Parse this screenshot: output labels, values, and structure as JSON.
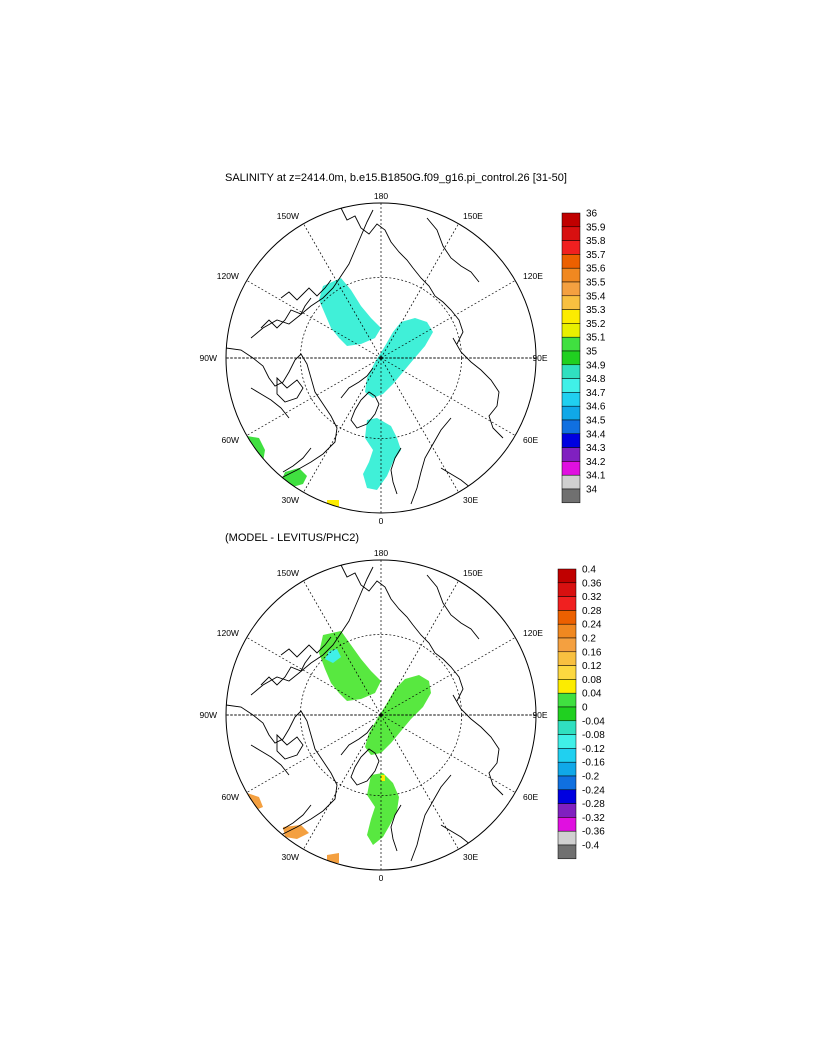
{
  "panel1": {
    "title": "SALINITY at z=2414.0m, b.e15.B1850G.f09_g16.pi_control.26 [31-50]",
    "lon_labels": [
      "180",
      "150E",
      "120E",
      "90E",
      "60E",
      "30E",
      "0",
      "30W",
      "60W",
      "90W",
      "120W",
      "150W"
    ],
    "colorbar": {
      "labels": [
        "36",
        "35.9",
        "35.8",
        "35.7",
        "35.6",
        "35.5",
        "35.4",
        "35.3",
        "35.2",
        "35.1",
        "35",
        "34.9",
        "34.8",
        "34.7",
        "34.6",
        "34.5",
        "34.4",
        "34.3",
        "34.2",
        "34.1",
        "34"
      ],
      "colors": [
        "#c00000",
        "#d81010",
        "#f02020",
        "#ec6000",
        "#f08820",
        "#f4a040",
        "#f8c040",
        "#fcec00",
        "#e8f000",
        "#40e040",
        "#20d020",
        "#30e0c0",
        "#40f0e8",
        "#20d0f0",
        "#10a8e8",
        "#1070e0",
        "#0000e0",
        "#8020c0",
        "#e010e0",
        "#d0d0d0",
        "#707070"
      ]
    }
  },
  "panel2": {
    "title": "(MODEL - LEVITUS/PHC2)",
    "lon_labels": [
      "180",
      "150E",
      "120E",
      "90E",
      "60E",
      "30E",
      "0",
      "30W",
      "60W",
      "90W",
      "120W",
      "150W"
    ],
    "colorbar": {
      "labels": [
        "0.4",
        "0.36",
        "0.32",
        "0.28",
        "0.24",
        "0.2",
        "0.16",
        "0.12",
        "0.08",
        "0.04",
        "0",
        "-0.04",
        "-0.08",
        "-0.12",
        "-0.16",
        "-0.2",
        "-0.24",
        "-0.28",
        "-0.32",
        "-0.36",
        "-0.4"
      ],
      "colors": [
        "#c00000",
        "#d81010",
        "#f02020",
        "#ec6000",
        "#f08820",
        "#f4a040",
        "#f8c040",
        "#fcd840",
        "#fcec00",
        "#40e040",
        "#20d020",
        "#30e0c0",
        "#40f0e8",
        "#20d0f0",
        "#10a8e8",
        "#1070e0",
        "#0000e0",
        "#8020c0",
        "#e010e0",
        "#d0d0d0",
        "#707070"
      ]
    }
  },
  "colors": {
    "field1": "#40f0d8",
    "field2": "#58e840",
    "orange": "#f4a040",
    "yellow": "#fcec00"
  }
}
